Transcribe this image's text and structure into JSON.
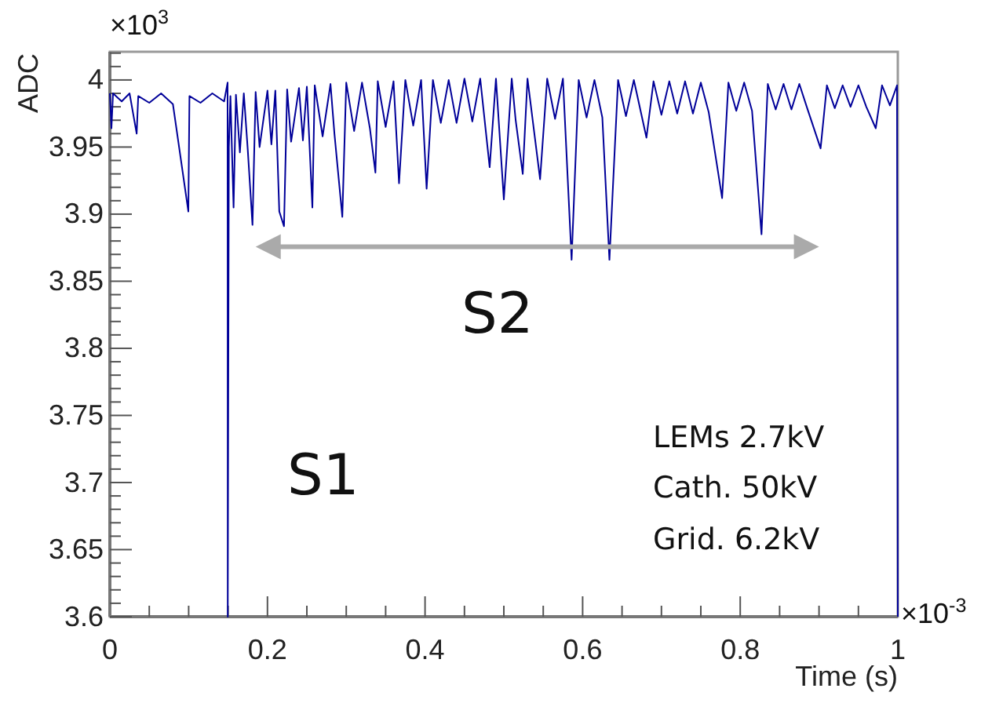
{
  "chart_data": {
    "type": "line",
    "xlabel": "Time (s)",
    "ylabel": "ADC",
    "xlim": [
      0,
      1
    ],
    "ylim": [
      3.6,
      4.021
    ],
    "xticks": [
      0,
      {
        "value": 0.05,
        "label": null
      },
      {
        "value": 0.1,
        "label": null
      },
      {
        "value": 0.15,
        "label": null
      },
      0.2,
      {
        "value": 0.25,
        "label": null
      },
      {
        "value": 0.3,
        "label": null
      },
      {
        "value": 0.35,
        "label": null
      },
      0.4,
      {
        "value": 0.45,
        "label": null
      },
      {
        "value": 0.5,
        "label": null
      },
      {
        "value": 0.55,
        "label": null
      },
      0.6,
      {
        "value": 0.65,
        "label": null
      },
      {
        "value": 0.7,
        "label": null
      },
      {
        "value": 0.75,
        "label": null
      },
      0.8,
      {
        "value": 0.85,
        "label": null
      },
      {
        "value": 0.9,
        "label": null
      },
      {
        "value": 0.95,
        "label": null
      },
      1
    ],
    "yticks": [
      3.6,
      {
        "value": 3.61,
        "label": null
      },
      {
        "value": 3.62,
        "label": null
      },
      {
        "value": 3.63,
        "label": null
      },
      {
        "value": 3.64,
        "label": null
      },
      3.65,
      {
        "value": 3.66,
        "label": null
      },
      {
        "value": 3.67,
        "label": null
      },
      {
        "value": 3.68,
        "label": null
      },
      {
        "value": 3.69,
        "label": null
      },
      3.7,
      {
        "value": 3.71,
        "label": null
      },
      {
        "value": 3.72,
        "label": null
      },
      {
        "value": 3.73,
        "label": null
      },
      {
        "value": 3.74,
        "label": null
      },
      3.75,
      {
        "value": 3.76,
        "label": null
      },
      {
        "value": 3.77,
        "label": null
      },
      {
        "value": 3.78,
        "label": null
      },
      {
        "value": 3.79,
        "label": null
      },
      3.8,
      {
        "value": 3.81,
        "label": null
      },
      {
        "value": 3.82,
        "label": null
      },
      {
        "value": 3.83,
        "label": null
      },
      {
        "value": 3.84,
        "label": null
      },
      3.85,
      {
        "value": 3.86,
        "label": null
      },
      {
        "value": 3.87,
        "label": null
      },
      {
        "value": 3.88,
        "label": null
      },
      {
        "value": 3.89,
        "label": null
      },
      3.9,
      {
        "value": 3.91,
        "label": null
      },
      {
        "value": 3.92,
        "label": null
      },
      {
        "value": 3.93,
        "label": null
      },
      {
        "value": 3.94,
        "label": null
      },
      3.95,
      {
        "value": 3.96,
        "label": null
      },
      {
        "value": 3.97,
        "label": null
      },
      {
        "value": 3.98,
        "label": null
      },
      {
        "value": 3.99,
        "label": null
      },
      4,
      {
        "value": 4.01,
        "label": null
      },
      {
        "value": 4.02,
        "label": null
      }
    ],
    "grid": false,
    "line_style": "solid",
    "annotations": [
      "×10$^{3}$",
      "×10$^{-3}$",
      "S1",
      "S2",
      "LEMs 2.7kV",
      "Cath. 50kV",
      "Grid. 6.2kV"
    ],
    "series": [
      {
        "color": "#000099",
        "x": [
          0,
          0.002,
          0.004,
          0.015,
          0.025,
          0.034,
          0.036,
          0.05,
          0.065,
          0.08,
          0.0996,
          0.101,
          0.115,
          0.13,
          0.145,
          0.1494,
          0.1496,
          0.151,
          0.153,
          0.157,
          0.16,
          0.165,
          0.17,
          0.175,
          0.181,
          0.185,
          0.19,
          0.2,
          0.205,
          0.21,
          0.215,
          0.221,
          0.225,
          0.23,
          0.24,
          0.245,
          0.25,
          0.257,
          0.26,
          0.27,
          0.28,
          0.285,
          0.295,
          0.3,
          0.31,
          0.32,
          0.33,
          0.337,
          0.34,
          0.35,
          0.36,
          0.367,
          0.375,
          0.385,
          0.395,
          0.402,
          0.41,
          0.42,
          0.43,
          0.44,
          0.45,
          0.46,
          0.47,
          0.482,
          0.49,
          0.5,
          0.51,
          0.515,
          0.524,
          0.53,
          0.546,
          0.555,
          0.565,
          0.575,
          0.586,
          0.595,
          0.605,
          0.615,
          0.625,
          0.634,
          0.645,
          0.655,
          0.665,
          0.681,
          0.69,
          0.7,
          0.71,
          0.72,
          0.73,
          0.74,
          0.75,
          0.76,
          0.777,
          0.785,
          0.795,
          0.805,
          0.815,
          0.827,
          0.835,
          0.845,
          0.855,
          0.865,
          0.875,
          0.885,
          0.902,
          0.91,
          0.92,
          0.93,
          0.94,
          0.95,
          0.96,
          0.972,
          0.98,
          0.99,
          0.999,
          1
        ],
        "values": [
          3.99,
          3.964,
          3.99,
          3.984,
          3.99,
          3.96,
          3.988,
          3.983,
          3.99,
          3.982,
          3.902,
          3.988,
          3.983,
          3.99,
          3.984,
          3.998,
          3.6,
          3.95,
          3.988,
          3.905,
          3.989,
          3.946,
          3.99,
          3.948,
          3.892,
          3.991,
          3.95,
          3.992,
          3.952,
          3.992,
          3.902,
          3.891,
          3.993,
          3.954,
          3.994,
          3.955,
          3.995,
          3.905,
          3.996,
          3.958,
          3.997,
          3.96,
          3.898,
          3.998,
          3.962,
          3.998,
          3.964,
          3.931,
          3.999,
          3.965,
          3.999,
          3.923,
          4,
          3.966,
          4,
          3.919,
          4,
          3.968,
          4,
          3.968,
          4.001,
          3.969,
          4.001,
          3.935,
          4.001,
          3.911,
          4.001,
          3.97,
          3.93,
          4.001,
          3.926,
          4.001,
          3.971,
          4.001,
          3.866,
          4,
          3.972,
          4,
          3.972,
          3.866,
          4,
          3.973,
          4,
          3.957,
          3.999,
          3.974,
          3.999,
          3.975,
          3.999,
          3.975,
          3.998,
          3.976,
          3.912,
          3.998,
          3.977,
          3.998,
          3.977,
          3.885,
          3.997,
          3.978,
          3.997,
          3.978,
          3.997,
          3.979,
          3.949,
          3.996,
          3.979,
          3.996,
          3.98,
          3.996,
          3.98,
          3.964,
          3.996,
          3.981,
          3.996,
          3.6
        ]
      }
    ]
  }
}
